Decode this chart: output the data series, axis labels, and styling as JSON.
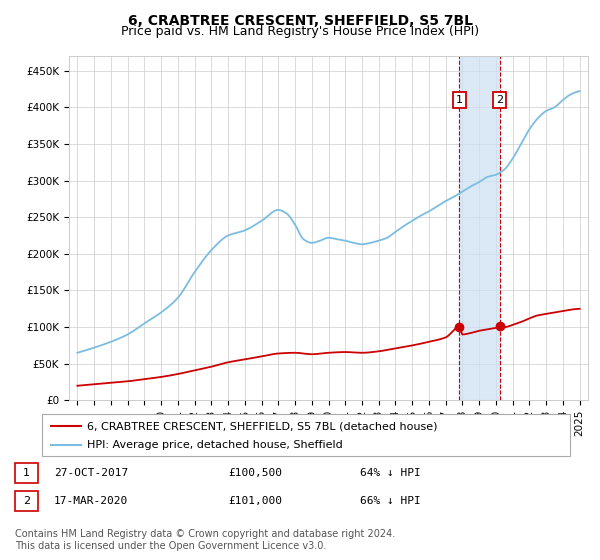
{
  "title": "6, CRABTREE CRESCENT, SHEFFIELD, S5 7BL",
  "subtitle": "Price paid vs. HM Land Registry's House Price Index (HPI)",
  "ylabel_ticks": [
    "£0",
    "£50K",
    "£100K",
    "£150K",
    "£200K",
    "£250K",
    "£300K",
    "£350K",
    "£400K",
    "£450K"
  ],
  "ytick_values": [
    0,
    50000,
    100000,
    150000,
    200000,
    250000,
    300000,
    350000,
    400000,
    450000
  ],
  "ylim": [
    0,
    470000
  ],
  "xlim_start": 1994.5,
  "xlim_end": 2025.5,
  "xticks": [
    1995,
    1996,
    1997,
    1998,
    1999,
    2000,
    2001,
    2002,
    2003,
    2004,
    2005,
    2006,
    2007,
    2008,
    2009,
    2010,
    2011,
    2012,
    2013,
    2014,
    2015,
    2016,
    2017,
    2018,
    2019,
    2020,
    2021,
    2022,
    2023,
    2024,
    2025
  ],
  "hpi_color": "#7bbde0",
  "price_color": "#cc0000",
  "annotation_box_color": "#cc0000",
  "shaded_region_color": "#cce0f5",
  "shaded_x_start": 2017.82,
  "shaded_x_end": 2020.22,
  "sale1_x": 2017.82,
  "sale1_y": 100500,
  "sale2_x": 2020.22,
  "sale2_y": 101000,
  "annotation1": {
    "x": 2017.82,
    "y_label": 410000,
    "label": "1",
    "date": "27-OCT-2017",
    "price": "£100,500",
    "pct": "64% ↓ HPI"
  },
  "annotation2": {
    "x": 2020.22,
    "y_label": 410000,
    "label": "2",
    "date": "17-MAR-2020",
    "price": "£101,000",
    "pct": "66% ↓ HPI"
  },
  "legend_label_price": "6, CRABTREE CRESCENT, SHEFFIELD, S5 7BL (detached house)",
  "legend_label_hpi": "HPI: Average price, detached house, Sheffield",
  "footer": "Contains HM Land Registry data © Crown copyright and database right 2024.\nThis data is licensed under the Open Government Licence v3.0.",
  "title_fontsize": 10,
  "subtitle_fontsize": 9,
  "tick_fontsize": 7.5,
  "legend_fontsize": 8,
  "footer_fontsize": 7,
  "annotation_fontsize": 8
}
